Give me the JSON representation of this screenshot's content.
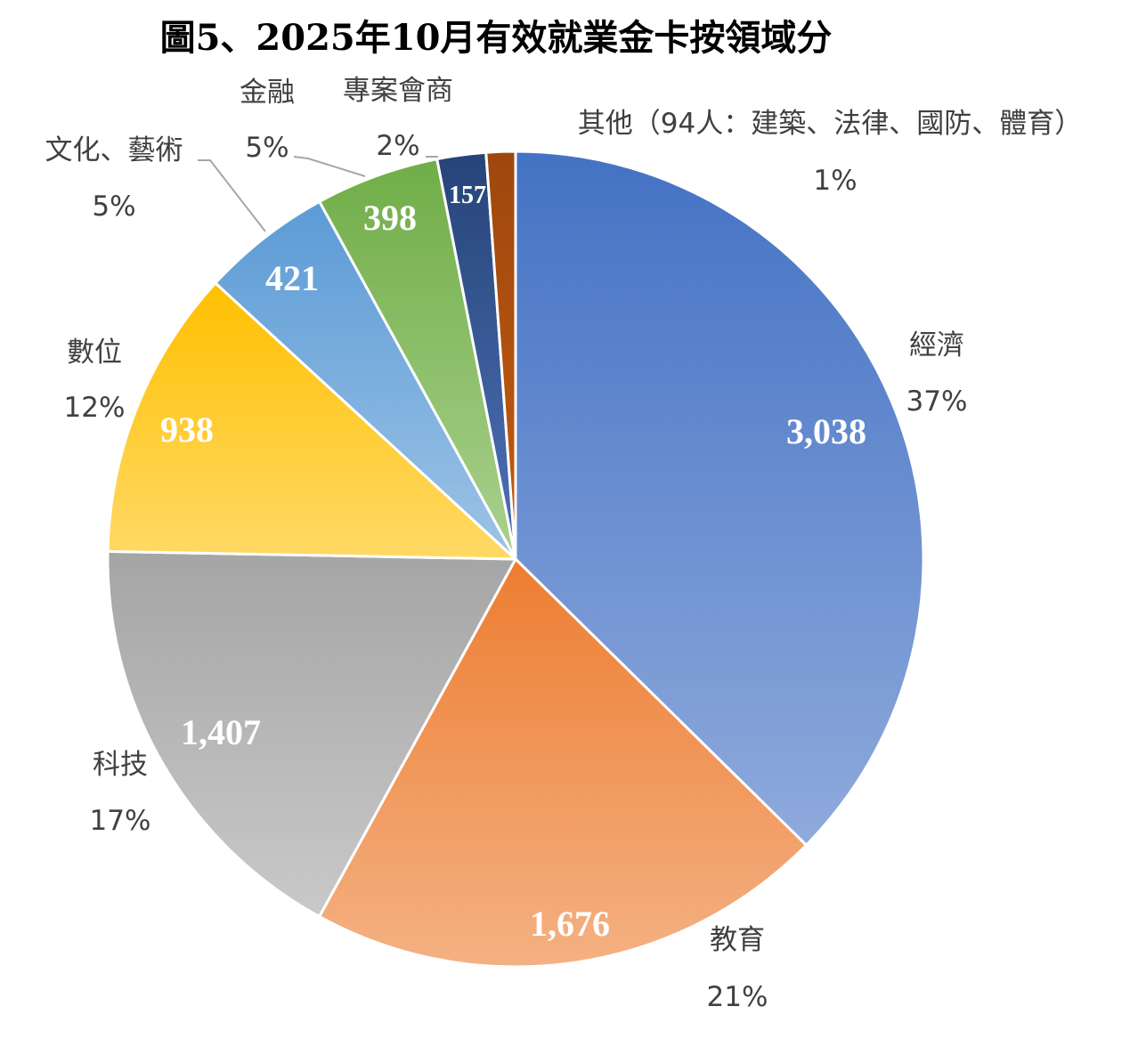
{
  "chart_data": {
    "type": "pie",
    "title": "圖5、2025年10月有效就業金卡按領域分",
    "start": "top, clockwise",
    "slices": [
      {
        "name": "經濟",
        "value": 3038,
        "value_label": "3,038",
        "percent": "37%",
        "color_top": "#4472C4",
        "color_bottom": "#8FAADC"
      },
      {
        "name": "教育",
        "value": 1676,
        "value_label": "1,676",
        "percent": "21%",
        "color_top": "#ED7D31",
        "color_bottom": "#F4B183"
      },
      {
        "name": "科技",
        "value": 1407,
        "value_label": "1,407",
        "percent": "17%",
        "color_top": "#A5A5A5",
        "color_bottom": "#C9C9C9"
      },
      {
        "name": "數位",
        "value": 938,
        "value_label": "938",
        "percent": "12%",
        "color_top": "#FFC000",
        "color_bottom": "#FFD966"
      },
      {
        "name": "文化、藝術",
        "value": 421,
        "value_label": "421",
        "percent": "5%",
        "color_top": "#5B9BD5",
        "color_bottom": "#9DC3E6"
      },
      {
        "name": "金融",
        "value": 398,
        "value_label": "398",
        "percent": "5%",
        "color_top": "#70AD47",
        "color_bottom": "#A9D18E"
      },
      {
        "name": "專案會商",
        "value": 157,
        "value_label": "157",
        "percent": "2%",
        "color_top": "#264478",
        "color_bottom": "#4F72B8"
      },
      {
        "name": "其他（94人：建築、法律、國防、體育）",
        "value": 94,
        "value_label": "",
        "percent": "1%",
        "color_top": "#9E480E",
        "color_bottom": "#C55A11"
      }
    ]
  }
}
